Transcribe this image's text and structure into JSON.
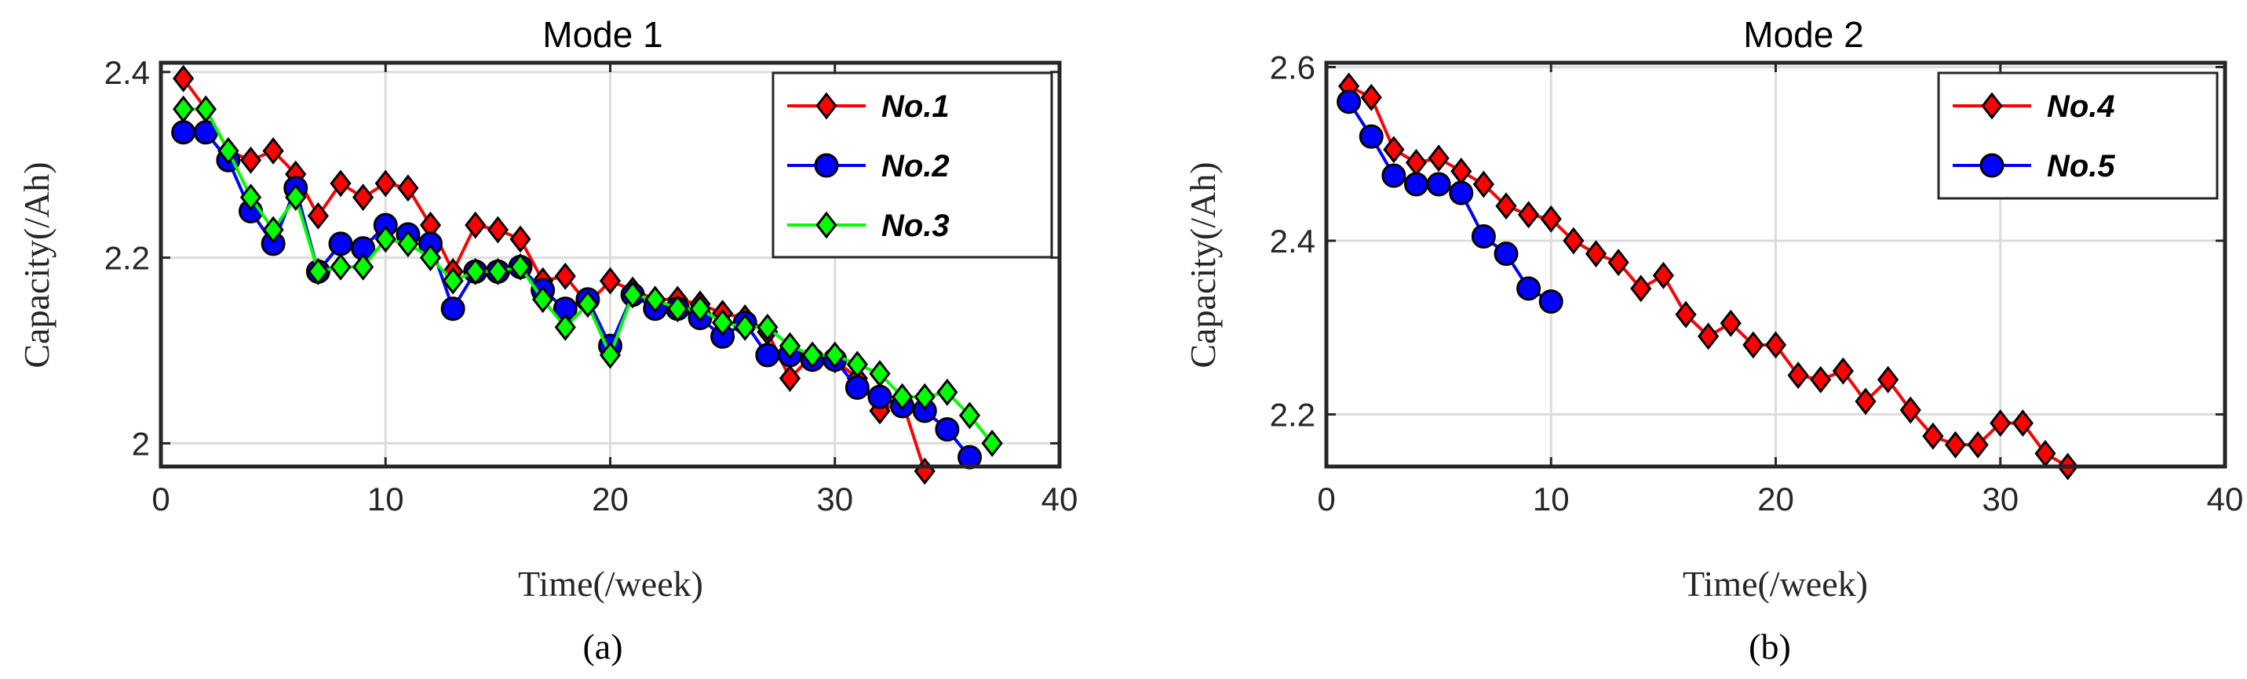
{
  "chart_data": [
    {
      "type": "line",
      "title": "Mode 1",
      "xlabel": "Time(/week)",
      "ylabel": "Capacity(/Ah)",
      "panel_label": "(a)",
      "xlim": [
        0,
        40
      ],
      "ylim": [
        1.975,
        2.41
      ],
      "xticks": [
        0,
        10,
        20,
        30,
        40
      ],
      "xtick_labels": [
        "0",
        "10",
        "20",
        "30",
        "40"
      ],
      "yticks": [
        2.0,
        2.2,
        2.4
      ],
      "ytick_labels": [
        "2",
        "2.2",
        "2.4"
      ],
      "grid": true,
      "legend_position": "top-right",
      "series": [
        {
          "name": "No.1",
          "color": "#ff0000",
          "marker": "diamond",
          "x": [
            1,
            2,
            3,
            4,
            5,
            6,
            7,
            8,
            9,
            10,
            11,
            12,
            13,
            14,
            15,
            16,
            17,
            18,
            19,
            20,
            21,
            22,
            23,
            24,
            25,
            26,
            27,
            28,
            29,
            30,
            31,
            32,
            33,
            34
          ],
          "y": [
            2.393,
            2.36,
            2.315,
            2.305,
            2.315,
            2.29,
            2.245,
            2.28,
            2.265,
            2.28,
            2.275,
            2.235,
            2.185,
            2.235,
            2.23,
            2.22,
            2.175,
            2.18,
            2.15,
            2.175,
            2.165,
            2.155,
            2.155,
            2.15,
            2.14,
            2.135,
            2.12,
            2.07,
            2.095,
            2.09,
            2.07,
            2.035,
            2.045,
            1.97
          ]
        },
        {
          "name": "No.2",
          "color": "#0000ff",
          "marker": "circle",
          "x": [
            1,
            2,
            3,
            4,
            5,
            6,
            7,
            8,
            9,
            10,
            11,
            12,
            13,
            14,
            15,
            16,
            17,
            18,
            19,
            20,
            21,
            22,
            23,
            24,
            25,
            26,
            27,
            28,
            29,
            30,
            31,
            32,
            33,
            34,
            35,
            36
          ],
          "y": [
            2.335,
            2.335,
            2.305,
            2.25,
            2.215,
            2.275,
            2.185,
            2.215,
            2.21,
            2.235,
            2.225,
            2.215,
            2.145,
            2.185,
            2.185,
            2.19,
            2.165,
            2.145,
            2.155,
            2.105,
            2.16,
            2.145,
            2.145,
            2.135,
            2.115,
            2.13,
            2.095,
            2.095,
            2.09,
            2.09,
            2.06,
            2.05,
            2.04,
            2.035,
            2.015,
            1.985
          ]
        },
        {
          "name": "No.3",
          "color": "#00ff00",
          "marker": "diamond",
          "x": [
            1,
            2,
            3,
            4,
            5,
            6,
            7,
            8,
            9,
            10,
            11,
            12,
            13,
            14,
            15,
            16,
            17,
            18,
            19,
            20,
            21,
            22,
            23,
            24,
            25,
            26,
            27,
            28,
            29,
            30,
            31,
            32,
            33,
            34,
            35,
            36,
            37
          ],
          "y": [
            2.36,
            2.36,
            2.315,
            2.265,
            2.23,
            2.265,
            2.185,
            2.19,
            2.19,
            2.22,
            2.215,
            2.2,
            2.175,
            2.185,
            2.185,
            2.19,
            2.155,
            2.125,
            2.15,
            2.095,
            2.16,
            2.155,
            2.145,
            2.145,
            2.13,
            2.125,
            2.125,
            2.105,
            2.095,
            2.095,
            2.085,
            2.075,
            2.05,
            2.05,
            2.055,
            2.03,
            2.0
          ]
        }
      ]
    },
    {
      "type": "line",
      "title": "Mode 2",
      "xlabel": "Time(/week)",
      "ylabel": "Capacity(/Ah)",
      "panel_label": "(b)",
      "xlim": [
        0,
        40
      ],
      "ylim": [
        2.14,
        2.605
      ],
      "xticks": [
        0,
        10,
        20,
        30,
        40
      ],
      "xtick_labels": [
        "0",
        "10",
        "20",
        "30",
        "40"
      ],
      "yticks": [
        2.2,
        2.4,
        2.6
      ],
      "ytick_labels": [
        "2.2",
        "2.4",
        "2.6"
      ],
      "grid": true,
      "legend_position": "top-right",
      "series": [
        {
          "name": "No.4",
          "color": "#ff0000",
          "marker": "diamond",
          "x": [
            1,
            2,
            3,
            4,
            5,
            6,
            7,
            8,
            9,
            10,
            11,
            12,
            13,
            14,
            15,
            16,
            17,
            18,
            19,
            20,
            21,
            22,
            23,
            24,
            25,
            26,
            27,
            28,
            29,
            30,
            31,
            32,
            33
          ],
          "y": [
            2.578,
            2.565,
            2.505,
            2.49,
            2.495,
            2.48,
            2.465,
            2.44,
            2.43,
            2.425,
            2.4,
            2.385,
            2.375,
            2.345,
            2.36,
            2.315,
            2.29,
            2.305,
            2.28,
            2.28,
            2.245,
            2.24,
            2.25,
            2.215,
            2.24,
            2.205,
            2.175,
            2.165,
            2.165,
            2.19,
            2.19,
            2.155,
            2.14
          ]
        },
        {
          "name": "No.5",
          "color": "#0000ff",
          "marker": "circle",
          "x": [
            1,
            2,
            3,
            4,
            5,
            6,
            7,
            8,
            9,
            10
          ],
          "y": [
            2.56,
            2.52,
            2.475,
            2.465,
            2.465,
            2.455,
            2.405,
            2.385,
            2.345,
            2.33
          ]
        }
      ]
    }
  ]
}
